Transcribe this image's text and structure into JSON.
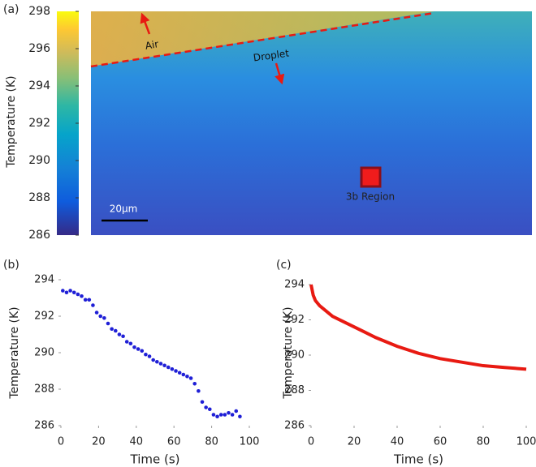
{
  "chart_data": [
    {
      "type": "colormap",
      "panel": "(a)",
      "ylabel": "Temperature (K)",
      "ylim": [
        286,
        298
      ],
      "yticks": [
        286,
        288,
        290,
        292,
        294,
        296,
        298
      ],
      "annotations": [
        "Air",
        "Droplet",
        "3b Region",
        "20μm"
      ]
    },
    {
      "type": "scatter",
      "panel": "(b)",
      "xlabel": "Time (s)",
      "ylabel": "Temperature (K)",
      "color": "#1f1fd6",
      "x": [
        1,
        3,
        5,
        7,
        9,
        11,
        13,
        15,
        17,
        19,
        21,
        23,
        25,
        27,
        29,
        31,
        33,
        35,
        37,
        39,
        41,
        43,
        45,
        47,
        49,
        51,
        53,
        55,
        57,
        59,
        61,
        63,
        65,
        67,
        69,
        71,
        73,
        75,
        77,
        79,
        81,
        83,
        85,
        87,
        89,
        91,
        93,
        95
      ],
      "values": [
        293.4,
        293.3,
        293.4,
        293.3,
        293.2,
        293.1,
        292.9,
        292.9,
        292.6,
        292.2,
        292.0,
        291.9,
        291.6,
        291.3,
        291.2,
        291.0,
        290.9,
        290.6,
        290.5,
        290.3,
        290.2,
        290.1,
        289.9,
        289.8,
        289.6,
        289.5,
        289.4,
        289.3,
        289.2,
        289.1,
        289.0,
        288.9,
        288.8,
        288.7,
        288.6,
        288.3,
        287.9,
        287.3,
        287.0,
        286.9,
        286.6,
        286.5,
        286.6,
        286.6,
        286.7,
        286.6,
        286.8,
        286.5
      ],
      "xlim": [
        0,
        100
      ],
      "ylim": [
        286,
        294
      ],
      "xticks": [
        0,
        20,
        40,
        60,
        80,
        100
      ],
      "yticks": [
        286,
        288,
        290,
        292,
        294
      ]
    },
    {
      "type": "line",
      "panel": "(c)",
      "xlabel": "Time (s)",
      "ylabel": "Temperature (K)",
      "color": "#e81a12",
      "x": [
        0,
        1,
        2,
        4,
        6,
        8,
        10,
        15,
        20,
        25,
        30,
        40,
        50,
        60,
        70,
        80,
        90,
        100
      ],
      "values": [
        294.0,
        293.4,
        293.1,
        292.8,
        292.6,
        292.4,
        292.2,
        291.9,
        291.6,
        291.3,
        291.0,
        290.5,
        290.1,
        289.8,
        289.6,
        289.4,
        289.3,
        289.2
      ],
      "xlim": [
        0,
        100
      ],
      "ylim": [
        286,
        294
      ],
      "xticks": [
        0,
        20,
        40,
        60,
        80,
        100
      ],
      "yticks": [
        286,
        288,
        290,
        292,
        294
      ]
    }
  ]
}
